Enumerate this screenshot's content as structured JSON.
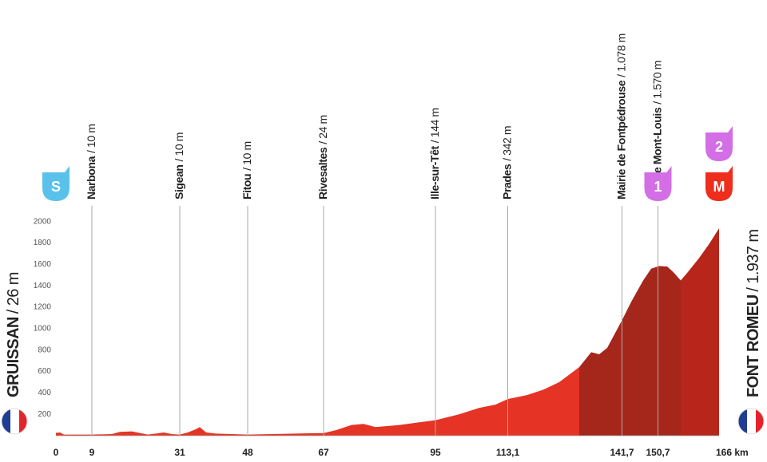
{
  "chart_data": {
    "type": "profile",
    "ylim": [
      0,
      2050
    ],
    "yticks": [
      200,
      400,
      600,
      800,
      1000,
      1200,
      1400,
      1600,
      1800,
      2000
    ],
    "xlim": [
      0,
      166
    ],
    "xticks": [
      0,
      9,
      31,
      48,
      67,
      95,
      {
        "value": 113.1,
        "label": "113,1"
      },
      {
        "value": 141.7,
        "label": "141,7"
      },
      {
        "value": 150.7,
        "label": "150,7"
      },
      {
        "value": 166,
        "label": "166 km"
      }
    ],
    "start": {
      "name": "GRUISSAN",
      "altitude": "/ 26 m"
    },
    "finish": {
      "name": "FONT ROMEU",
      "altitude": "/ 1.937 m"
    },
    "waypoints": [
      {
        "km": 9,
        "name": "Narbona",
        "altitude": "/ 10 m"
      },
      {
        "km": 31,
        "name": "Sigean",
        "altitude": "/ 10 m"
      },
      {
        "km": 48,
        "name": "Fitou",
        "altitude": "/ 10 m"
      },
      {
        "km": 67,
        "name": "Rivesaltes",
        "altitude": "/ 24 m"
      },
      {
        "km": 95,
        "name": "Ille-sur-Têt",
        "altitude": "/ 144 m"
      },
      {
        "km": 113.1,
        "name": "Prades",
        "altitude": "/ 342 m"
      },
      {
        "km": 141.7,
        "name": "Mairie de Fontpédrouse",
        "altitude": "/ 1.078 m"
      },
      {
        "km": 150.7,
        "name": "Col de Mont-Louis",
        "altitude": "/ 1.570 m"
      }
    ],
    "badges": [
      {
        "km": 0,
        "labels": [
          "S"
        ],
        "colors": [
          "#5ac2ea"
        ]
      },
      {
        "km": 150.7,
        "labels": [
          "1"
        ],
        "colors": [
          "#d36ee6"
        ]
      },
      {
        "km": 166,
        "labels": [
          "M",
          "2"
        ],
        "colors": [
          "#ee2d1c",
          "#d36ee6"
        ]
      }
    ],
    "profile": [
      {
        "color": "#e53425",
        "x": [
          0,
          1,
          2,
          9,
          14,
          16,
          19,
          21,
          23,
          25,
          27,
          29,
          31,
          33,
          35,
          36,
          37.6,
          40,
          44,
          48,
          54,
          60,
          67,
          70,
          74,
          77,
          80,
          86,
          90,
          95,
          101,
          106,
          110,
          113.1,
          118,
          122,
          126,
          131
        ],
        "values": [
          26,
          30,
          10,
          10,
          15,
          35,
          40,
          25,
          10,
          20,
          30,
          15,
          10,
          30,
          60,
          80,
          30,
          20,
          15,
          10,
          15,
          20,
          24,
          50,
          100,
          110,
          80,
          100,
          120,
          144,
          200,
          260,
          290,
          342,
          380,
          430,
          500,
          640
        ]
      },
      {
        "color": "#a5261a",
        "x": [
          131,
          134,
          136,
          138,
          141.7,
          144,
          147,
          149,
          151,
          153,
          154.5,
          156.4
        ],
        "values": [
          640,
          780,
          760,
          820,
          1078,
          1250,
          1450,
          1560,
          1585,
          1580,
          1530,
          1450
        ]
      },
      {
        "color": "#b8251a",
        "x": [
          156.4,
          158,
          161,
          163.5,
          166
        ],
        "values": [
          1450,
          1520,
          1660,
          1790,
          1937
        ]
      }
    ]
  }
}
